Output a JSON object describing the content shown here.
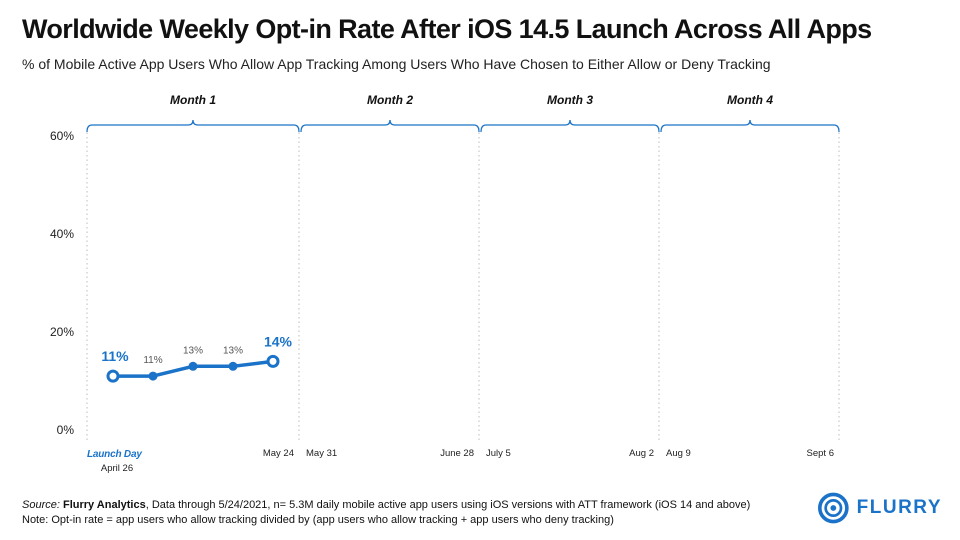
{
  "header": {
    "title": "Worldwide Weekly Opt-in Rate After iOS 14.5 Launch Across All Apps",
    "subtitle": "% of Mobile Active App Users Who Allow App Tracking Among Users Who Have Chosen to Either Allow or Deny Tracking"
  },
  "footer": {
    "source_label": "Source:",
    "source_name": "Flurry Analytics",
    "source_rest": ", Data through 5/24/2021, n= 5.3M daily mobile active app users using iOS versions with ATT framework (iOS 14 and above)",
    "note": "Note: Opt-in rate = app users who allow tracking divided by (app users who allow tracking + app users who deny tracking)"
  },
  "logo": {
    "text": "FLURRY",
    "icon": "flurry-logo-icon",
    "color": "#1a73c8"
  },
  "chart_data": {
    "type": "line",
    "title": "Worldwide Weekly Opt-in Rate After iOS 14.5 Launch Across All Apps",
    "subtitle": "% of Mobile Active App Users Who Allow App Tracking Among Users Who Have Chosen to Either Allow or Deny Tracking",
    "xlabel": "",
    "ylabel": "",
    "ylim": [
      0,
      60
    ],
    "y_ticks": [
      0,
      20,
      40,
      60
    ],
    "y_tick_labels": [
      "0%",
      "20%",
      "40%",
      "60%"
    ],
    "grid": false,
    "series_color": "#1a73c8",
    "months": [
      {
        "label": "Month 1",
        "start_week": 0,
        "end_week": 4.5,
        "start_label": "",
        "end_label": "May 24"
      },
      {
        "label": "Month 2",
        "start_week": 5,
        "end_week": 9,
        "start_label": "May 31",
        "end_label": "June 28"
      },
      {
        "label": "Month 3",
        "start_week": 9.5,
        "end_week": 13.5,
        "start_label": "July 5",
        "end_label": "Aug 2"
      },
      {
        "label": "Month 4",
        "start_week": 14,
        "end_week": 18,
        "start_label": "Aug 9",
        "end_label": "Sept 6"
      }
    ],
    "launch_label": "Launch Day",
    "launch_date": "April 26",
    "series": [
      {
        "name": "Weekly Opt-in Rate",
        "points": [
          {
            "week": 0,
            "value": 11,
            "label": "11%",
            "highlight": true
          },
          {
            "week": 1,
            "value": 11,
            "label": "11%",
            "highlight": false
          },
          {
            "week": 2,
            "value": 13,
            "label": "13%",
            "highlight": false
          },
          {
            "week": 3,
            "value": 13,
            "label": "13%",
            "highlight": false
          },
          {
            "week": 4,
            "value": 14,
            "label": "14%",
            "highlight": true
          }
        ]
      }
    ]
  }
}
